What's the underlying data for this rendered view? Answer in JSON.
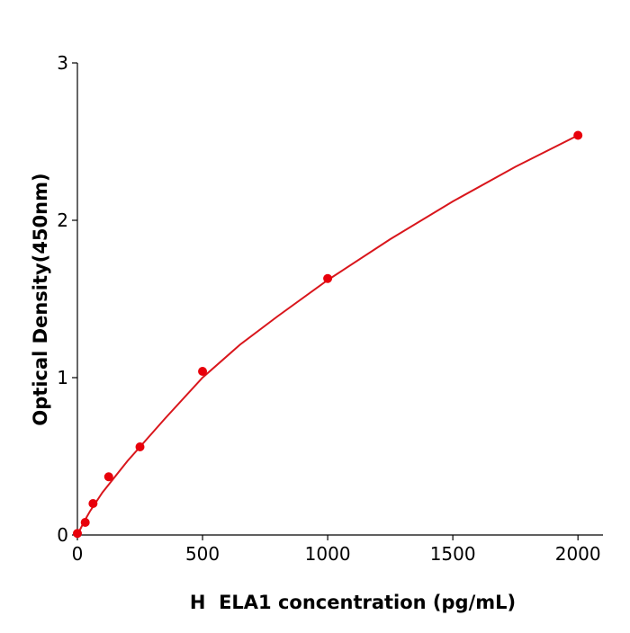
{
  "chart_data": {
    "type": "scatter",
    "x_label": "H  ELA1 concentration (pg/mL)",
    "y_label": "Optical Density(450nm)",
    "xlim": [
      0,
      2100
    ],
    "ylim": [
      0,
      3
    ],
    "xticks": [
      0,
      500,
      1000,
      1500,
      2000
    ],
    "yticks": [
      0,
      1,
      2,
      3
    ],
    "grid": false,
    "series": [
      {
        "type": "scatter",
        "color": "#e8000b",
        "x": [
          0,
          31.25,
          62.5,
          125,
          250,
          500,
          1000,
          2000
        ],
        "values": [
          0.01,
          0.08,
          0.2,
          0.37,
          0.56,
          1.04,
          1.63,
          2.54
        ]
      },
      {
        "type": "line",
        "color": "#d9161c",
        "x": [
          0,
          25,
          50,
          100,
          150,
          200,
          250,
          350,
          500,
          650,
          800,
          1000,
          1250,
          1500,
          1750,
          2000
        ],
        "values": [
          0.0,
          0.08,
          0.15,
          0.27,
          0.37,
          0.47,
          0.56,
          0.74,
          1.0,
          1.21,
          1.39,
          1.62,
          1.88,
          2.12,
          2.34,
          2.54
        ]
      }
    ]
  }
}
